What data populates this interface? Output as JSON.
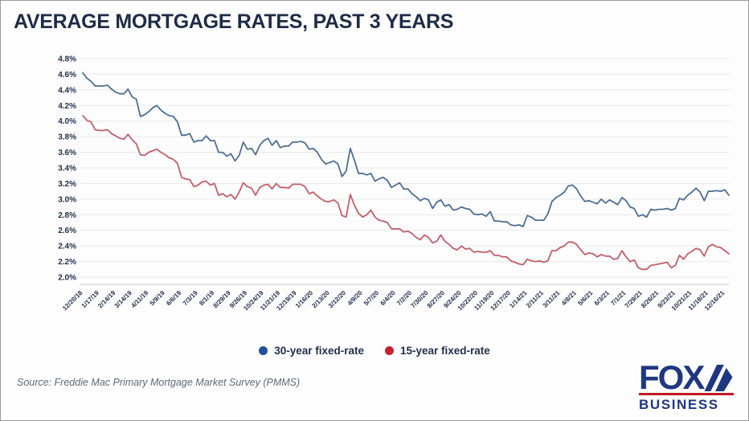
{
  "title": "AVERAGE MORTGAGE RATES, PAST 3 YEARS",
  "legend": {
    "series30_label": "30-year fixed-rate",
    "series15_label": "15-year fixed-rate"
  },
  "source": "Source: Freddie Mac Primary Mortgage Market Survey (PMMS)",
  "logo": {
    "line1": "FOX",
    "line2": "BUSINESS"
  },
  "colors": {
    "title_text": "#1d2c47",
    "axis_text": "#22304d",
    "grid": "#e9e9ec",
    "series30_line": "#4d6f94",
    "series15_line": "#c35f68",
    "legend_dot_30": "#1f4f9e",
    "legend_dot_15": "#c8202f",
    "logo_navy": "#1f3780",
    "logo_red": "#c11b22"
  },
  "chart_data": {
    "type": "line",
    "title": "AVERAGE MORTGAGE RATES, PAST 3 YEARS",
    "xlabel": "",
    "ylabel": "",
    "ylim": [
      2.0,
      4.8
    ],
    "grid": true,
    "legend_position": "bottom",
    "y_ticks": [
      "4.8%",
      "4.6%",
      "4.4%",
      "4.2%",
      "4.0%",
      "3.8%",
      "3.6%",
      "3.4%",
      "3.2%",
      "3.0%",
      "2.8%",
      "2.6%",
      "2.4%",
      "2.2%",
      "2.0%"
    ],
    "x_label_every_n_points": 4,
    "x_labels": [
      "12/20/18",
      "1/17/19",
      "2/14/19",
      "3/14/19",
      "4/11/19",
      "5/9/19",
      "6/6/19",
      "7/3/19",
      "8/1/19",
      "8/29/19",
      "9/26/19",
      "10/24/19",
      "11/21/19",
      "12/19/19",
      "1/16/20",
      "2/13/20",
      "3/12/20",
      "4/9/20",
      "5/7/20",
      "6/4/20",
      "7/2/20",
      "7/30/20",
      "8/27/20",
      "9/24/20",
      "10/22/20",
      "11/19/20",
      "12/17/20",
      "1/14/21",
      "2/11/21",
      "3/11/21",
      "4/8/21",
      "5/6/21",
      "6/3/21",
      "7/1/21",
      "7/29/21",
      "8/26/21",
      "9/23/21",
      "10/21/21",
      "11/18/21",
      "12/16/21"
    ],
    "series": [
      {
        "name": "30-year fixed-rate",
        "color": "#4d6f94",
        "values": [
          4.62,
          4.55,
          4.51,
          4.45,
          4.45,
          4.45,
          4.46,
          4.41,
          4.37,
          4.35,
          4.35,
          4.41,
          4.31,
          4.28,
          4.06,
          4.08,
          4.12,
          4.17,
          4.2,
          4.14,
          4.1,
          4.07,
          4.06,
          3.99,
          3.82,
          3.82,
          3.84,
          3.73,
          3.75,
          3.75,
          3.81,
          3.75,
          3.75,
          3.6,
          3.6,
          3.55,
          3.58,
          3.49,
          3.56,
          3.73,
          3.64,
          3.65,
          3.57,
          3.69,
          3.75,
          3.78,
          3.69,
          3.75,
          3.66,
          3.68,
          3.68,
          3.73,
          3.73,
          3.74,
          3.72,
          3.64,
          3.65,
          3.6,
          3.51,
          3.45,
          3.47,
          3.49,
          3.45,
          3.29,
          3.36,
          3.65,
          3.5,
          3.33,
          3.33,
          3.31,
          3.33,
          3.23,
          3.26,
          3.28,
          3.24,
          3.15,
          3.18,
          3.21,
          3.13,
          3.13,
          3.07,
          3.03,
          2.98,
          3.01,
          2.99,
          2.88,
          2.96,
          2.99,
          2.91,
          2.93,
          2.86,
          2.87,
          2.9,
          2.88,
          2.87,
          2.81,
          2.8,
          2.81,
          2.78,
          2.84,
          2.72,
          2.72,
          2.71,
          2.71,
          2.67,
          2.66,
          2.67,
          2.65,
          2.79,
          2.77,
          2.73,
          2.73,
          2.73,
          2.81,
          2.97,
          3.02,
          3.05,
          3.09,
          3.17,
          3.18,
          3.13,
          3.04,
          2.97,
          2.98,
          2.96,
          2.94,
          3.0,
          2.95,
          2.99,
          2.96,
          2.93,
          3.02,
          2.98,
          2.9,
          2.88,
          2.78,
          2.8,
          2.77,
          2.87,
          2.86,
          2.87,
          2.87,
          2.88,
          2.86,
          2.88,
          3.01,
          2.99,
          3.05,
          3.09,
          3.14,
          3.09,
          2.98,
          3.1,
          3.1,
          3.11,
          3.1,
          3.12,
          3.05
        ]
      },
      {
        "name": "15-year fixed-rate",
        "color": "#c35f68",
        "values": [
          4.07,
          4.01,
          3.99,
          3.89,
          3.88,
          3.88,
          3.89,
          3.84,
          3.81,
          3.78,
          3.77,
          3.83,
          3.76,
          3.71,
          3.57,
          3.56,
          3.6,
          3.62,
          3.64,
          3.6,
          3.57,
          3.53,
          3.51,
          3.46,
          3.28,
          3.26,
          3.25,
          3.16,
          3.18,
          3.22,
          3.23,
          3.18,
          3.2,
          3.05,
          3.07,
          3.03,
          3.06,
          3.0,
          3.09,
          3.21,
          3.16,
          3.14,
          3.05,
          3.15,
          3.18,
          3.19,
          3.13,
          3.2,
          3.15,
          3.15,
          3.14,
          3.19,
          3.19,
          3.19,
          3.16,
          3.07,
          3.09,
          3.04,
          3.0,
          2.97,
          2.97,
          2.99,
          2.95,
          2.79,
          2.77,
          3.06,
          2.92,
          2.82,
          2.77,
          2.8,
          2.86,
          2.77,
          2.73,
          2.72,
          2.7,
          2.62,
          2.62,
          2.62,
          2.58,
          2.59,
          2.56,
          2.51,
          2.48,
          2.54,
          2.51,
          2.44,
          2.46,
          2.54,
          2.46,
          2.42,
          2.37,
          2.35,
          2.4,
          2.36,
          2.37,
          2.32,
          2.33,
          2.32,
          2.32,
          2.34,
          2.28,
          2.28,
          2.26,
          2.26,
          2.21,
          2.19,
          2.17,
          2.16,
          2.23,
          2.21,
          2.2,
          2.21,
          2.19,
          2.21,
          2.34,
          2.34,
          2.38,
          2.4,
          2.45,
          2.45,
          2.42,
          2.35,
          2.29,
          2.31,
          2.3,
          2.26,
          2.29,
          2.27,
          2.27,
          2.23,
          2.24,
          2.34,
          2.26,
          2.2,
          2.22,
          2.12,
          2.1,
          2.1,
          2.15,
          2.16,
          2.17,
          2.18,
          2.19,
          2.12,
          2.15,
          2.28,
          2.23,
          2.3,
          2.33,
          2.37,
          2.35,
          2.27,
          2.39,
          2.42,
          2.39,
          2.38,
          2.34,
          2.3
        ]
      }
    ]
  }
}
